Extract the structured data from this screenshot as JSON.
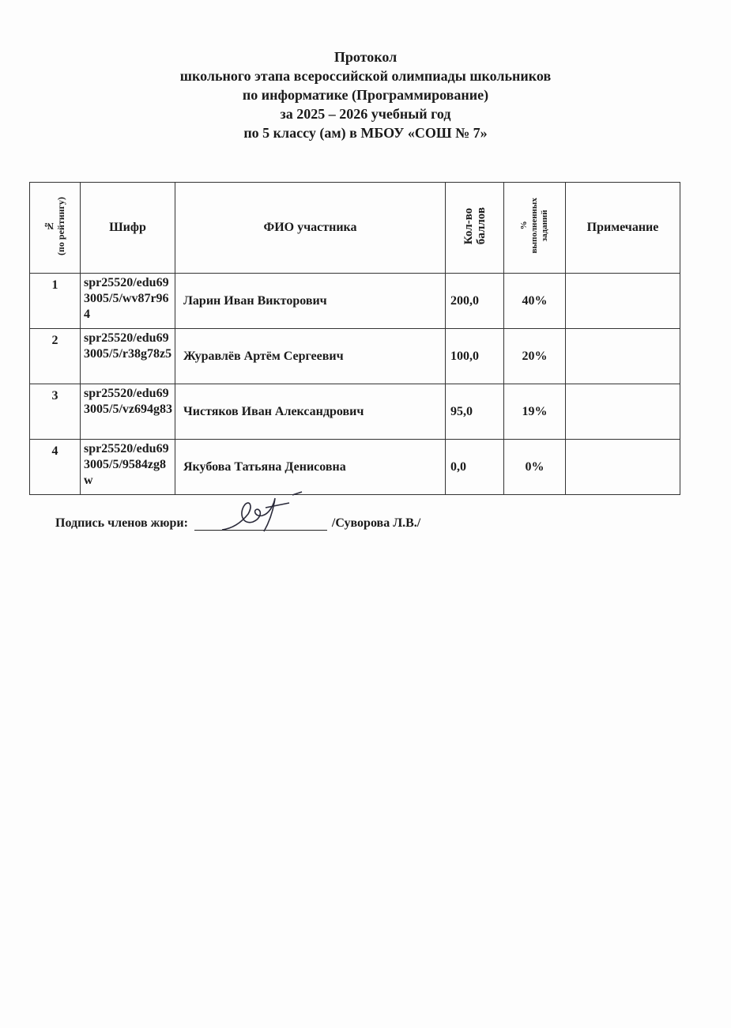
{
  "title_lines": [
    "Протокол",
    "школьного этапа всероссийской олимпиады школьников",
    "по информатике (Программирование)",
    "за 2025 – 2026 учебный год",
    "по 5 классу (ам)  в МБОУ «СОШ № 7»"
  ],
  "table": {
    "headers": {
      "rank_line1": "№",
      "rank_line2": "(по рейтингу)",
      "code": "Шифр",
      "name": "ФИО участника",
      "score_line1": "Кол-во",
      "score_line2": "баллов",
      "pct_line1": "%",
      "pct_line2": "выполненных",
      "pct_line3": "заданий",
      "note": "Примечание"
    },
    "rows": [
      {
        "rank": "1",
        "code": "spr25520/edu693005/5/wv87r964",
        "name": "Ларин Иван Викторович",
        "score": "200,0",
        "pct": "40%",
        "note": ""
      },
      {
        "rank": "2",
        "code": "spr25520/edu693005/5/r38g78z5",
        "name": "Журавлёв Артём Сергеевич",
        "score": "100,0",
        "pct": "20%",
        "note": ""
      },
      {
        "rank": "3",
        "code": "spr25520/edu693005/5/vz694g83",
        "name": "Чистяков Иван Александрович",
        "score": "95,0",
        "pct": "19%",
        "note": ""
      },
      {
        "rank": "4",
        "code": "spr25520/edu693005/5/9584zg8w",
        "name": "Якубова Татьяна Денисовна",
        "score": "0,0",
        "pct": "0%",
        "note": ""
      }
    ]
  },
  "signature": {
    "label": "Подпись членов жюри:",
    "name": "/Суворова Л.В./"
  }
}
